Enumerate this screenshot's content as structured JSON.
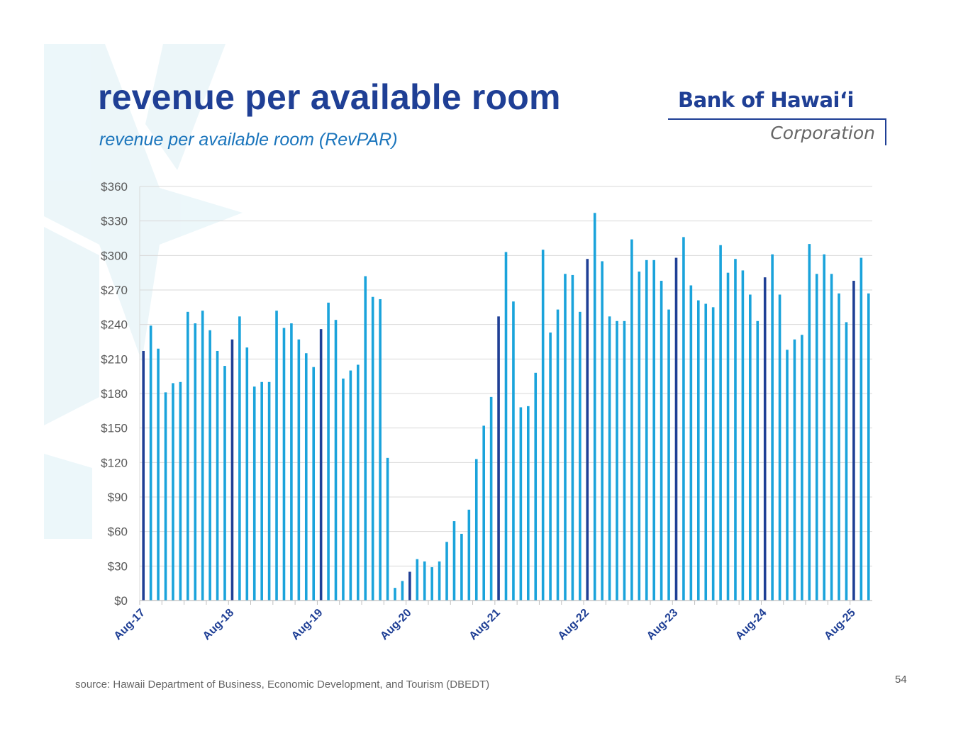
{
  "title": "revenue per available room",
  "subtitle": "revenue per available room (RevPAR)",
  "logo": {
    "brand": "Bank of Hawaiʻi",
    "sub": "Corporation"
  },
  "source": "source: Hawaii Department of Business, Economic Development, and Tourism (DBEDT)",
  "page_number": "54",
  "colors": {
    "title": "#1f3f95",
    "subtitle": "#1b75bc",
    "bar": "#1aa3db",
    "bar_highlight": "#1f3f95",
    "grid": "#d9d9d9"
  },
  "chart_data": {
    "type": "bar",
    "title": "",
    "xlabel": "",
    "ylabel": "",
    "ylim": [
      0,
      360
    ],
    "y_ticks": [
      "$0",
      "$30",
      "$60",
      "$90",
      "$120",
      "$150",
      "$180",
      "$210",
      "$240",
      "$270",
      "$300",
      "$330",
      "$360"
    ],
    "x_tick_labels": [
      "Aug-17",
      "Aug-18",
      "Aug-19",
      "Aug-20",
      "Aug-21",
      "Aug-22",
      "Aug-23",
      "Aug-24",
      "Aug-25"
    ],
    "grid": true,
    "legend": "none",
    "series": [
      {
        "values": [
          217,
          239,
          219,
          181,
          189,
          190,
          251,
          241,
          252,
          235,
          217,
          204,
          227,
          247,
          220,
          186,
          190,
          190,
          252,
          237,
          241,
          227,
          215,
          203,
          236,
          259,
          244,
          193,
          200,
          205,
          282,
          264,
          262,
          124,
          11,
          17,
          25,
          36,
          34,
          29,
          34,
          51,
          69,
          58,
          79,
          123,
          152,
          177,
          247,
          303,
          260,
          168,
          169,
          198,
          305,
          233,
          253,
          284,
          283,
          251,
          297,
          337,
          295,
          247,
          243,
          243,
          314,
          286,
          296,
          296,
          278,
          253,
          298,
          316,
          274,
          261,
          258,
          255,
          309,
          285,
          297,
          287,
          266,
          243,
          281,
          301,
          266,
          218,
          227,
          231,
          310,
          284,
          301,
          284,
          267,
          242,
          278,
          298,
          267
        ]
      }
    ],
    "highlight_month": "Aug"
  }
}
